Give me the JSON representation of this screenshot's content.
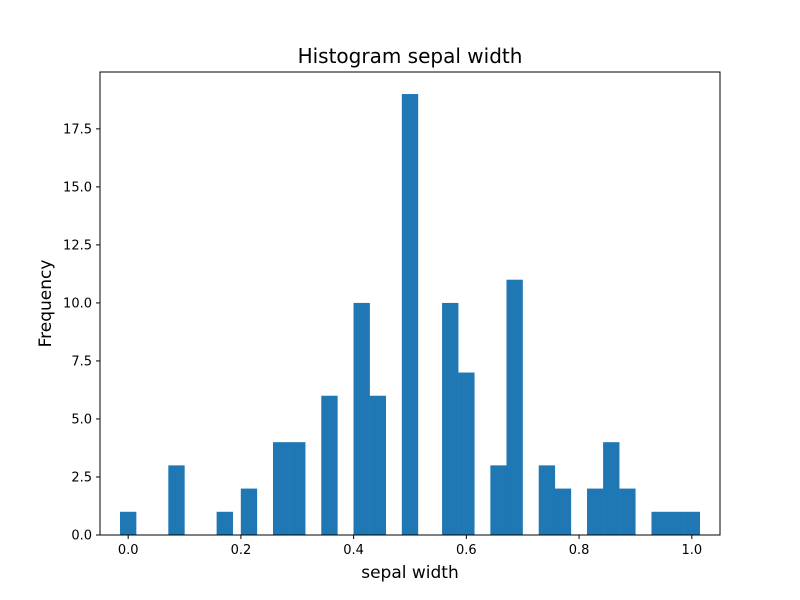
{
  "chart_data": {
    "type": "bar",
    "title": "Histogram sepal width",
    "xlabel": "sepal width",
    "ylabel": "Frequency",
    "xlim": [
      -0.05,
      1.05
    ],
    "ylim": [
      0,
      19.95
    ],
    "bin_width": 0.029,
    "bins": [
      {
        "x": 0.0,
        "count": 1
      },
      {
        "x": 0.0857,
        "count": 3
      },
      {
        "x": 0.1714,
        "count": 1
      },
      {
        "x": 0.2143,
        "count": 2
      },
      {
        "x": 0.2714,
        "count": 4
      },
      {
        "x": 0.3,
        "count": 4
      },
      {
        "x": 0.3571,
        "count": 6
      },
      {
        "x": 0.4143,
        "count": 10
      },
      {
        "x": 0.4429,
        "count": 6
      },
      {
        "x": 0.5,
        "count": 19
      },
      {
        "x": 0.5714,
        "count": 10
      },
      {
        "x": 0.6,
        "count": 7
      },
      {
        "x": 0.6571,
        "count": 3
      },
      {
        "x": 0.6857,
        "count": 11
      },
      {
        "x": 0.7429,
        "count": 3
      },
      {
        "x": 0.7714,
        "count": 2
      },
      {
        "x": 0.8286,
        "count": 2
      },
      {
        "x": 0.8571,
        "count": 4
      },
      {
        "x": 0.8857,
        "count": 2
      },
      {
        "x": 0.9429,
        "count": 1
      },
      {
        "x": 0.9714,
        "count": 1
      },
      {
        "x": 1.0,
        "count": 1
      }
    ],
    "x_ticks": [
      "0.0",
      "0.2",
      "0.4",
      "0.6",
      "0.8",
      "1.0"
    ],
    "x_tick_values": [
      0.0,
      0.2,
      0.4,
      0.6,
      0.8,
      1.0
    ],
    "y_ticks": [
      "0.0",
      "2.5",
      "5.0",
      "7.5",
      "10.0",
      "12.5",
      "15.0",
      "17.5"
    ],
    "y_tick_values": [
      0,
      2.5,
      5,
      7.5,
      10,
      12.5,
      15,
      17.5
    ],
    "grid": false,
    "legend": "none",
    "bar_color": "#1f77b4"
  }
}
